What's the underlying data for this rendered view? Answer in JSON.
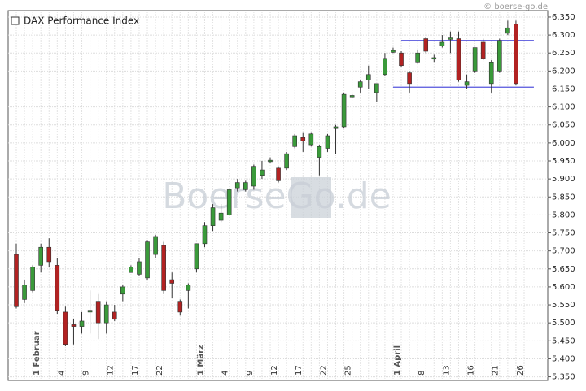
{
  "chart_data": {
    "type": "candlestick",
    "source": "© boerse-go.de",
    "watermark": "BoerseGo.de",
    "series": [
      {
        "name": "DAX Performance Index",
        "up_color": "#3a9a3a",
        "down_color": "#b22222",
        "open": [
          5690,
          5565,
          5590,
          5660,
          5710,
          5660,
          5530,
          5495,
          5490,
          5530,
          5560,
          5500,
          5530,
          5580,
          5640,
          5635,
          5625,
          5690,
          5715,
          5620,
          5560,
          5590,
          5650,
          5720,
          5770,
          5785,
          5800,
          5875,
          5870,
          5880,
          5910,
          5948,
          5930,
          5930,
          5990,
          6015,
          5995,
          5960,
          5985,
          6040,
          6045,
          6128,
          6155,
          6175,
          6140,
          6190,
          6252,
          6250,
          6195,
          6225,
          6290,
          6233,
          6270,
          6288,
          6290,
          6160,
          6200,
          6280,
          6165,
          6200,
          6305,
          6330
        ],
        "high": [
          5720,
          5620,
          5660,
          5720,
          5735,
          5680,
          5545,
          5510,
          5530,
          5590,
          5580,
          5560,
          5550,
          5605,
          5660,
          5680,
          5730,
          5745,
          5725,
          5640,
          5565,
          5610,
          5720,
          5780,
          5830,
          5830,
          5870,
          5900,
          5895,
          5940,
          5950,
          5960,
          5935,
          5975,
          6025,
          6030,
          6030,
          5995,
          6025,
          6050,
          6140,
          6135,
          6175,
          6215,
          6165,
          6250,
          6265,
          6255,
          6200,
          6260,
          6295,
          6245,
          6300,
          6310,
          6310,
          6190,
          6265,
          6290,
          6230,
          6290,
          6340,
          6340
        ],
        "low": [
          5540,
          5555,
          5585,
          5640,
          5655,
          5525,
          5435,
          5440,
          5470,
          5470,
          5455,
          5470,
          5505,
          5560,
          5640,
          5630,
          5620,
          5680,
          5580,
          5570,
          5520,
          5540,
          5640,
          5710,
          5755,
          5780,
          5800,
          5865,
          5865,
          5870,
          5900,
          5945,
          5890,
          5925,
          5985,
          5975,
          5990,
          5910,
          5975,
          5970,
          6040,
          6125,
          6140,
          6150,
          6115,
          6185,
          6250,
          6210,
          6140,
          6220,
          6250,
          6225,
          6265,
          6250,
          6170,
          6150,
          6195,
          6230,
          6140,
          6195,
          6300,
          6160
        ],
        "close": [
          5545,
          5605,
          5655,
          5710,
          5670,
          5535,
          5440,
          5490,
          5505,
          5535,
          5500,
          5550,
          5510,
          5600,
          5655,
          5670,
          5725,
          5740,
          5590,
          5610,
          5530,
          5605,
          5720,
          5770,
          5820,
          5805,
          5870,
          5890,
          5890,
          5935,
          5925,
          5952,
          5895,
          5970,
          6020,
          6005,
          6025,
          5990,
          6020,
          6045,
          6135,
          6132,
          6170,
          6190,
          6165,
          6235,
          6257,
          6215,
          6165,
          6250,
          6255,
          6237,
          6280,
          6292,
          6175,
          6170,
          6265,
          6235,
          6225,
          6285,
          6320,
          6165
        ]
      }
    ],
    "categories": [
      null,
      null,
      "1 Februar",
      null,
      null,
      "4",
      null,
      null,
      "9",
      null,
      null,
      "12",
      null,
      null,
      "17",
      null,
      null,
      "22",
      null,
      null,
      null,
      null,
      "1 März",
      null,
      null,
      "4",
      null,
      null,
      "9",
      null,
      null,
      "12",
      null,
      null,
      "17",
      null,
      null,
      "22",
      null,
      null,
      "25",
      null,
      null,
      null,
      null,
      null,
      "1 April",
      null,
      null,
      "8",
      null,
      null,
      "13",
      null,
      null,
      "16",
      null,
      null,
      "21",
      null,
      null,
      "26",
      null
    ],
    "hlines": [
      {
        "value": 6285,
        "from": 47,
        "to": 61,
        "color": "#5555dd"
      },
      {
        "value": 6155,
        "from": 46,
        "to": 61,
        "color": "#5555dd"
      }
    ],
    "ylim": [
      5340,
      6368
    ],
    "yticks": [
      {
        "value": 5350,
        "label": "5.350"
      },
      {
        "value": 5400,
        "label": "5.400"
      },
      {
        "value": 5450,
        "label": "5.450"
      },
      {
        "value": 5500,
        "label": "5.500"
      },
      {
        "value": 5550,
        "label": "5.550"
      },
      {
        "value": 5600,
        "label": "5.600"
      },
      {
        "value": 5650,
        "label": "5.650"
      },
      {
        "value": 5700,
        "label": "5.700"
      },
      {
        "value": 5750,
        "label": "5.750"
      },
      {
        "value": 5800,
        "label": "5.800"
      },
      {
        "value": 5850,
        "label": "5.850"
      },
      {
        "value": 5900,
        "label": "5.900"
      },
      {
        "value": 5950,
        "label": "5.950"
      },
      {
        "value": 6000,
        "label": "6.000"
      },
      {
        "value": 6050,
        "label": "6.050"
      },
      {
        "value": 6100,
        "label": "6.100"
      },
      {
        "value": 6150,
        "label": "6.150"
      },
      {
        "value": 6200,
        "label": "6.200"
      },
      {
        "value": 6250,
        "label": "6.250"
      },
      {
        "value": 6300,
        "label": "6.300"
      },
      {
        "value": 6350,
        "label": "6.350"
      }
    ],
    "grid": true
  }
}
